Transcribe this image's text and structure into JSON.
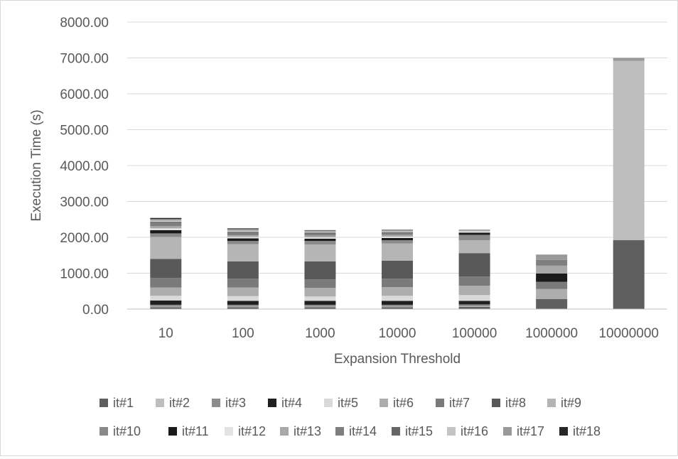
{
  "chart_data": {
    "type": "bar",
    "stacked": true,
    "title": "",
    "xlabel": "Expansion Threshold",
    "ylabel": "Execution Time (s)",
    "ylim": [
      0,
      8000
    ],
    "y_ticks": [
      "0.00",
      "1000.00",
      "2000.00",
      "3000.00",
      "4000.00",
      "5000.00",
      "6000.00",
      "7000.00",
      "8000.00"
    ],
    "categories": [
      "10",
      "100",
      "1000",
      "10000",
      "100000",
      "1000000",
      "10000000"
    ],
    "grid": true,
    "legend_position": "bottom",
    "series": [
      {
        "name": "it#1",
        "color": "#5f5f5f",
        "values": [
          50,
          50,
          50,
          50,
          60,
          280,
          1920
        ]
      },
      {
        "name": "it#2",
        "color": "#bdbdbd",
        "values": [
          20,
          20,
          20,
          20,
          20,
          0,
          5000
        ]
      },
      {
        "name": "it#3",
        "color": "#8c8c8c",
        "values": [
          50,
          50,
          50,
          50,
          50,
          10,
          0
        ]
      },
      {
        "name": "it#4",
        "color": "#1f1f1f",
        "values": [
          120,
          110,
          110,
          110,
          100,
          0,
          0
        ]
      },
      {
        "name": "it#5",
        "color": "#d9d9d9",
        "values": [
          130,
          130,
          120,
          140,
          160,
          0,
          0
        ]
      },
      {
        "name": "it#6",
        "color": "#adadad",
        "values": [
          230,
          240,
          240,
          240,
          260,
          270,
          0
        ]
      },
      {
        "name": "it#7",
        "color": "#7a7a7a",
        "values": [
          270,
          250,
          240,
          240,
          260,
          200,
          0
        ]
      },
      {
        "name": "it#8",
        "color": "#595959",
        "values": [
          530,
          480,
          500,
          500,
          650,
          0,
          0
        ]
      },
      {
        "name": "it#9",
        "color": "#b5b5b5",
        "values": [
          610,
          480,
          470,
          480,
          360,
          0,
          0
        ]
      },
      {
        "name": "it#10",
        "color": "#8a8a8a",
        "values": [
          100,
          90,
          100,
          90,
          150,
          0,
          0
        ]
      },
      {
        "name": "it#11",
        "color": "#1a1a1a",
        "values": [
          90,
          70,
          60,
          60,
          60,
          230,
          0
        ]
      },
      {
        "name": "it#12",
        "color": "#e3e3e3",
        "values": [
          50,
          40,
          40,
          40,
          40,
          0,
          0
        ]
      },
      {
        "name": "it#13",
        "color": "#a8a8a8",
        "values": [
          60,
          50,
          50,
          50,
          50,
          220,
          0
        ]
      },
      {
        "name": "it#14",
        "color": "#7f7f7f",
        "values": [
          80,
          60,
          50,
          50,
          0,
          160,
          0
        ]
      },
      {
        "name": "it#15",
        "color": "#666666",
        "values": [
          40,
          30,
          30,
          20,
          0,
          0,
          0
        ]
      },
      {
        "name": "it#16",
        "color": "#c4c4c4",
        "values": [
          40,
          40,
          30,
          30,
          0,
          0,
          0
        ]
      },
      {
        "name": "it#17",
        "color": "#999999",
        "values": [
          40,
          40,
          30,
          30,
          0,
          150,
          80
        ]
      },
      {
        "name": "it#18",
        "color": "#262626",
        "values": [
          30,
          20,
          10,
          10,
          0,
          0,
          0
        ]
      }
    ]
  }
}
